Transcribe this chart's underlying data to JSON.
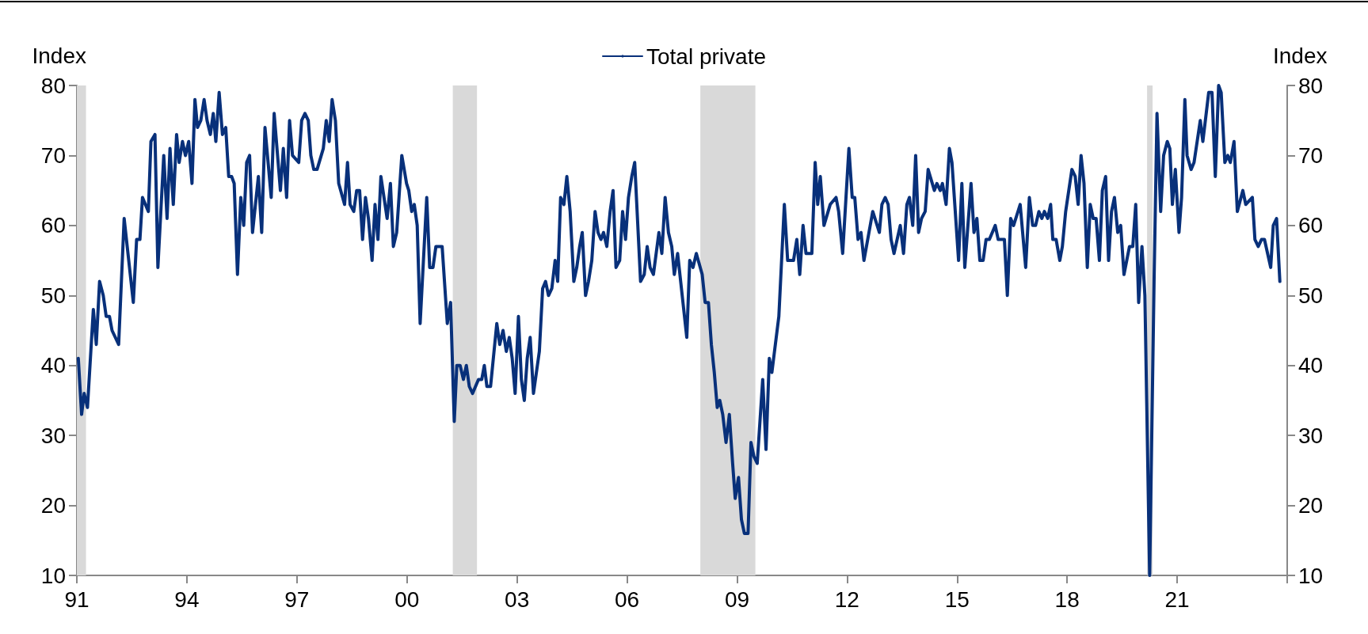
{
  "chart_data": {
    "type": "line",
    "ylabel": "Index",
    "y2label": "Index",
    "xlim": [
      1991,
      2024
    ],
    "xticks": [
      {
        "value": 1991,
        "label": "91"
      },
      {
        "value": 1994,
        "label": "94"
      },
      {
        "value": 1997,
        "label": "97"
      },
      {
        "value": 2000,
        "label": "00"
      },
      {
        "value": 2003,
        "label": "03"
      },
      {
        "value": 2006,
        "label": "06"
      },
      {
        "value": 2009,
        "label": "09"
      },
      {
        "value": 2012,
        "label": "12"
      },
      {
        "value": 2015,
        "label": "15"
      },
      {
        "value": 2018,
        "label": "18"
      },
      {
        "value": 2021,
        "label": "21"
      },
      {
        "value": 2024,
        "label": null
      }
    ],
    "ylim": [
      10,
      80
    ],
    "yticks": [
      10,
      20,
      30,
      40,
      50,
      60,
      70,
      80
    ],
    "y2lim": [
      10,
      80
    ],
    "y2ticks": [
      10,
      20,
      30,
      40,
      50,
      60,
      70,
      80
    ],
    "grid": false,
    "legend": "top",
    "marker": "none",
    "line_style": "solid",
    "bands": [
      {
        "axis": "x",
        "from": 1991.0,
        "to": 1991.25,
        "label": null,
        "color": "#d9d9d9"
      },
      {
        "axis": "x",
        "from": 2001.25,
        "to": 2001.91,
        "label": null,
        "color": "#d9d9d9"
      },
      {
        "axis": "x",
        "from": 2008.0,
        "to": 2009.5,
        "label": null,
        "color": "#d9d9d9"
      },
      {
        "axis": "x",
        "from": 2020.18,
        "to": 2020.33,
        "label": null,
        "color": "#d9d9d9"
      }
    ],
    "series": [
      {
        "name": "Total private",
        "color": "#08307a",
        "x": [
          1991.04,
          1991.13,
          1991.2,
          1991.29,
          1991.45,
          1991.53,
          1991.62,
          1991.72,
          1991.8,
          1991.89,
          1991.96,
          1992.14,
          1992.29,
          1992.54,
          1992.63,
          1992.72,
          1992.79,
          1992.95,
          1993.02,
          1993.13,
          1993.21,
          1993.37,
          1993.46,
          1993.54,
          1993.63,
          1993.72,
          1993.79,
          1993.88,
          1993.96,
          1994.05,
          1994.14,
          1994.22,
          1994.29,
          1994.38,
          1994.47,
          1994.55,
          1994.64,
          1994.72,
          1994.79,
          1994.88,
          1994.97,
          1995.06,
          1995.14,
          1995.22,
          1995.29,
          1995.38,
          1995.47,
          1995.55,
          1995.63,
          1995.71,
          1995.79,
          1995.95,
          1996.04,
          1996.13,
          1996.3,
          1996.38,
          1996.55,
          1996.63,
          1996.72,
          1996.8,
          1996.88,
          1997.05,
          1997.13,
          1997.22,
          1997.31,
          1997.38,
          1997.46,
          1997.55,
          1997.72,
          1997.8,
          1997.88,
          1997.96,
          1998.05,
          1998.14,
          1998.3,
          1998.38,
          1998.45,
          1998.55,
          1998.63,
          1998.71,
          1998.79,
          1998.87,
          1998.95,
          1999.05,
          1999.13,
          1999.21,
          1999.29,
          1999.46,
          1999.55,
          1999.63,
          1999.72,
          1999.86,
          1999.99,
          2000.05,
          2000.13,
          2000.2,
          2000.28,
          2000.36,
          2000.54,
          2000.62,
          2000.71,
          2000.79,
          2000.88,
          2000.96,
          2001.1,
          2001.19,
          2001.29,
          2001.36,
          2001.45,
          2001.54,
          2001.62,
          2001.7,
          2001.79,
          2001.95,
          2002.04,
          2002.11,
          2002.18,
          2002.28,
          2002.45,
          2002.53,
          2002.62,
          2002.71,
          2002.79,
          2002.87,
          2002.95,
          2003.04,
          2003.12,
          2003.2,
          2003.28,
          2003.36,
          2003.45,
          2003.53,
          2003.61,
          2003.7,
          2003.78,
          2003.86,
          2003.95,
          2004.04,
          2004.11,
          2004.19,
          2004.28,
          2004.36,
          2004.45,
          2004.55,
          2004.63,
          2004.71,
          2004.78,
          2004.87,
          2004.95,
          2005.04,
          2005.13,
          2005.21,
          2005.29,
          2005.36,
          2005.45,
          2005.54,
          2005.62,
          2005.7,
          2005.8,
          2005.88,
          2005.96,
          2006.04,
          2006.13,
          2006.21,
          2006.37,
          2006.47,
          2006.55,
          2006.63,
          2006.72,
          2006.87,
          2006.95,
          2007.04,
          2007.13,
          2007.22,
          2007.29,
          2007.38,
          2007.63,
          2007.71,
          2007.8,
          2007.89,
          2008.05,
          2008.13,
          2008.22,
          2008.3,
          2008.38,
          2008.46,
          2008.53,
          2008.61,
          2008.7,
          2008.79,
          2008.88,
          2008.95,
          2009.04,
          2009.12,
          2009.2,
          2009.3,
          2009.38,
          2009.46,
          2009.55,
          2009.7,
          2009.79,
          2009.88,
          2009.95,
          2010.14,
          2010.29,
          2010.38,
          2010.54,
          2010.63,
          2010.71,
          2010.8,
          2010.88,
          2010.95,
          2011.04,
          2011.13,
          2011.2,
          2011.27,
          2011.37,
          2011.54,
          2011.7,
          2011.77,
          2011.88,
          2012.05,
          2012.14,
          2012.21,
          2012.3,
          2012.38,
          2012.46,
          2012.7,
          2012.88,
          2012.95,
          2013.04,
          2013.12,
          2013.2,
          2013.28,
          2013.45,
          2013.54,
          2013.63,
          2013.7,
          2013.79,
          2013.87,
          2013.95,
          2014.03,
          2014.13,
          2014.21,
          2014.38,
          2014.45,
          2014.54,
          2014.6,
          2014.7,
          2014.79,
          2014.86,
          2015.04,
          2015.13,
          2015.21,
          2015.38,
          2015.46,
          2015.54,
          2015.62,
          2015.71,
          2015.79,
          2015.88,
          2016.04,
          2016.12,
          2016.29,
          2016.37,
          2016.46,
          2016.54,
          2016.72,
          2016.87,
          2016.97,
          2017.06,
          2017.14,
          2017.23,
          2017.31,
          2017.38,
          2017.47,
          2017.55,
          2017.61,
          2017.7,
          2017.8,
          2017.87,
          2017.96,
          2018.13,
          2018.22,
          2018.3,
          2018.38,
          2018.46,
          2018.55,
          2018.63,
          2018.71,
          2018.79,
          2018.88,
          2018.96,
          2019.05,
          2019.13,
          2019.21,
          2019.29,
          2019.38,
          2019.46,
          2019.55,
          2019.7,
          2019.79,
          2019.87,
          2019.95,
          2020.04,
          2020.12,
          2020.25,
          2020.37,
          2020.45,
          2020.55,
          2020.63,
          2020.73,
          2020.8,
          2020.87,
          2020.95,
          2021.05,
          2021.12,
          2021.21,
          2021.27,
          2021.38,
          2021.46,
          2021.63,
          2021.7,
          2021.86,
          2021.95,
          2022.04,
          2022.13,
          2022.2,
          2022.3,
          2022.38,
          2022.45,
          2022.55,
          2022.64,
          2022.79,
          2022.87,
          2023.05,
          2023.12,
          2023.21,
          2023.3,
          2023.38,
          2023.55,
          2023.62,
          2023.71,
          2023.8
        ],
        "values": [
          41,
          33,
          36,
          34,
          48,
          43,
          52,
          50,
          47,
          47,
          45,
          43,
          61,
          49,
          58,
          58,
          64,
          62,
          72,
          73,
          54,
          70,
          61,
          71,
          63,
          73,
          69,
          72,
          70,
          72,
          66,
          78,
          74,
          75,
          78,
          75,
          73,
          76,
          72,
          79,
          73,
          74,
          67,
          67,
          66,
          53,
          64,
          60,
          69,
          70,
          59,
          67,
          59,
          74,
          64,
          76,
          65,
          71,
          64,
          75,
          70,
          69,
          75,
          76,
          75,
          70,
          68,
          68,
          71,
          75,
          72,
          78,
          75,
          66,
          63,
          69,
          63,
          62,
          65,
          65,
          58,
          64,
          61,
          55,
          63,
          58,
          67,
          61,
          66,
          57,
          59,
          70,
          66,
          65,
          62,
          63,
          60,
          46,
          64,
          54,
          54,
          57,
          57,
          57,
          46,
          49,
          32,
          40,
          40,
          38,
          40,
          37,
          36,
          38,
          38,
          40,
          37,
          37,
          46,
          43,
          45,
          42,
          44,
          41,
          36,
          47,
          38,
          35,
          41,
          44,
          36,
          39,
          42,
          51,
          52,
          50,
          51,
          55,
          52,
          64,
          63,
          67,
          62,
          52,
          54,
          57,
          59,
          50,
          52,
          55,
          62,
          59,
          58,
          59,
          57,
          62,
          65,
          54,
          55,
          62,
          58,
          64,
          67,
          69,
          52,
          53,
          57,
          54,
          53,
          59,
          56,
          64,
          59,
          57,
          53,
          56,
          44,
          55,
          54,
          56,
          53,
          49,
          49,
          43,
          39,
          34,
          35,
          33,
          29,
          33,
          26,
          21,
          24,
          18,
          16,
          16,
          29,
          27,
          26,
          38,
          28,
          41,
          39,
          47,
          63,
          55,
          55,
          58,
          53,
          60,
          56,
          56,
          56,
          69,
          63,
          67,
          60,
          63,
          64,
          62,
          56,
          71,
          64,
          64,
          58,
          59,
          55,
          62,
          59,
          63,
          64,
          63,
          58,
          56,
          60,
          56,
          63,
          64,
          60,
          70,
          59,
          61,
          62,
          68,
          65,
          66,
          65,
          66,
          63,
          71,
          69,
          55,
          66,
          54,
          66,
          59,
          61,
          55,
          55,
          58,
          58,
          60,
          58,
          58,
          50,
          61,
          60,
          63,
          54,
          64,
          60,
          60,
          62,
          61,
          62,
          61,
          63,
          58,
          58,
          55,
          57,
          62,
          68,
          67,
          63,
          70,
          66,
          54,
          63,
          61,
          61,
          55,
          65,
          67,
          55,
          62,
          64,
          59,
          60,
          53,
          57,
          57,
          63,
          49,
          57,
          50,
          10,
          52,
          76,
          62,
          70,
          72,
          71,
          63,
          68,
          59,
          64,
          78,
          70,
          68,
          69,
          75,
          72,
          79,
          79,
          67,
          80,
          79,
          69,
          70,
          69,
          72,
          62,
          65,
          63,
          64,
          58,
          57,
          58,
          58,
          54,
          60,
          61,
          52
        ]
      }
    ]
  }
}
